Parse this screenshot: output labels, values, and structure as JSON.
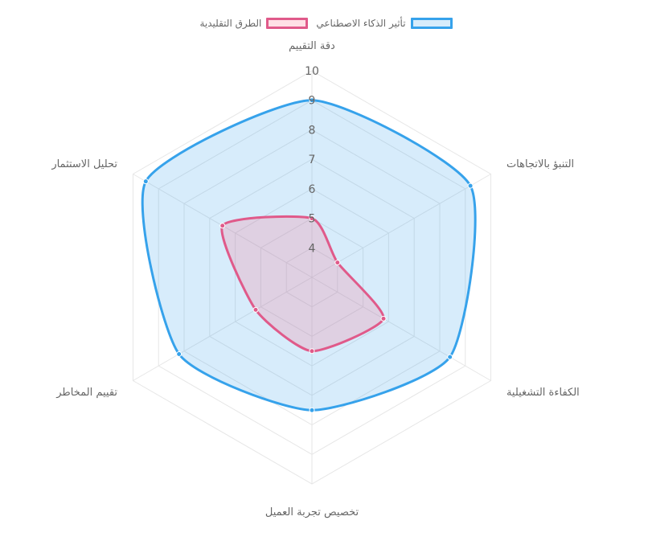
{
  "chart_data": {
    "type": "radar",
    "labels": [
      "دقة التقييم",
      "التنبؤ بالاتجاهات",
      "الكفاءة التشغيلية",
      "تخصيص تجربة العميل",
      "تقييم المخاطر",
      "تحليل الاستثمار"
    ],
    "rlim": [
      3,
      10
    ],
    "ticks": [
      "4",
      "5",
      "6",
      "7",
      "8",
      "9",
      "10"
    ],
    "series": [
      {
        "name": "تأثير الذكاء الاصطناعي",
        "values": [
          9,
          9.2,
          8.4,
          7.5,
          8.2,
          9.5
        ],
        "stroke": "#36a2eb",
        "fill": "rgba(54,162,235,0.2)"
      },
      {
        "name": "الطرق التقليدية",
        "values": [
          5,
          4,
          5.8,
          5.5,
          5.2,
          6.5
        ],
        "stroke": "#e05a8a",
        "fill": "rgba(255,99,132,0.2)"
      }
    ]
  }
}
